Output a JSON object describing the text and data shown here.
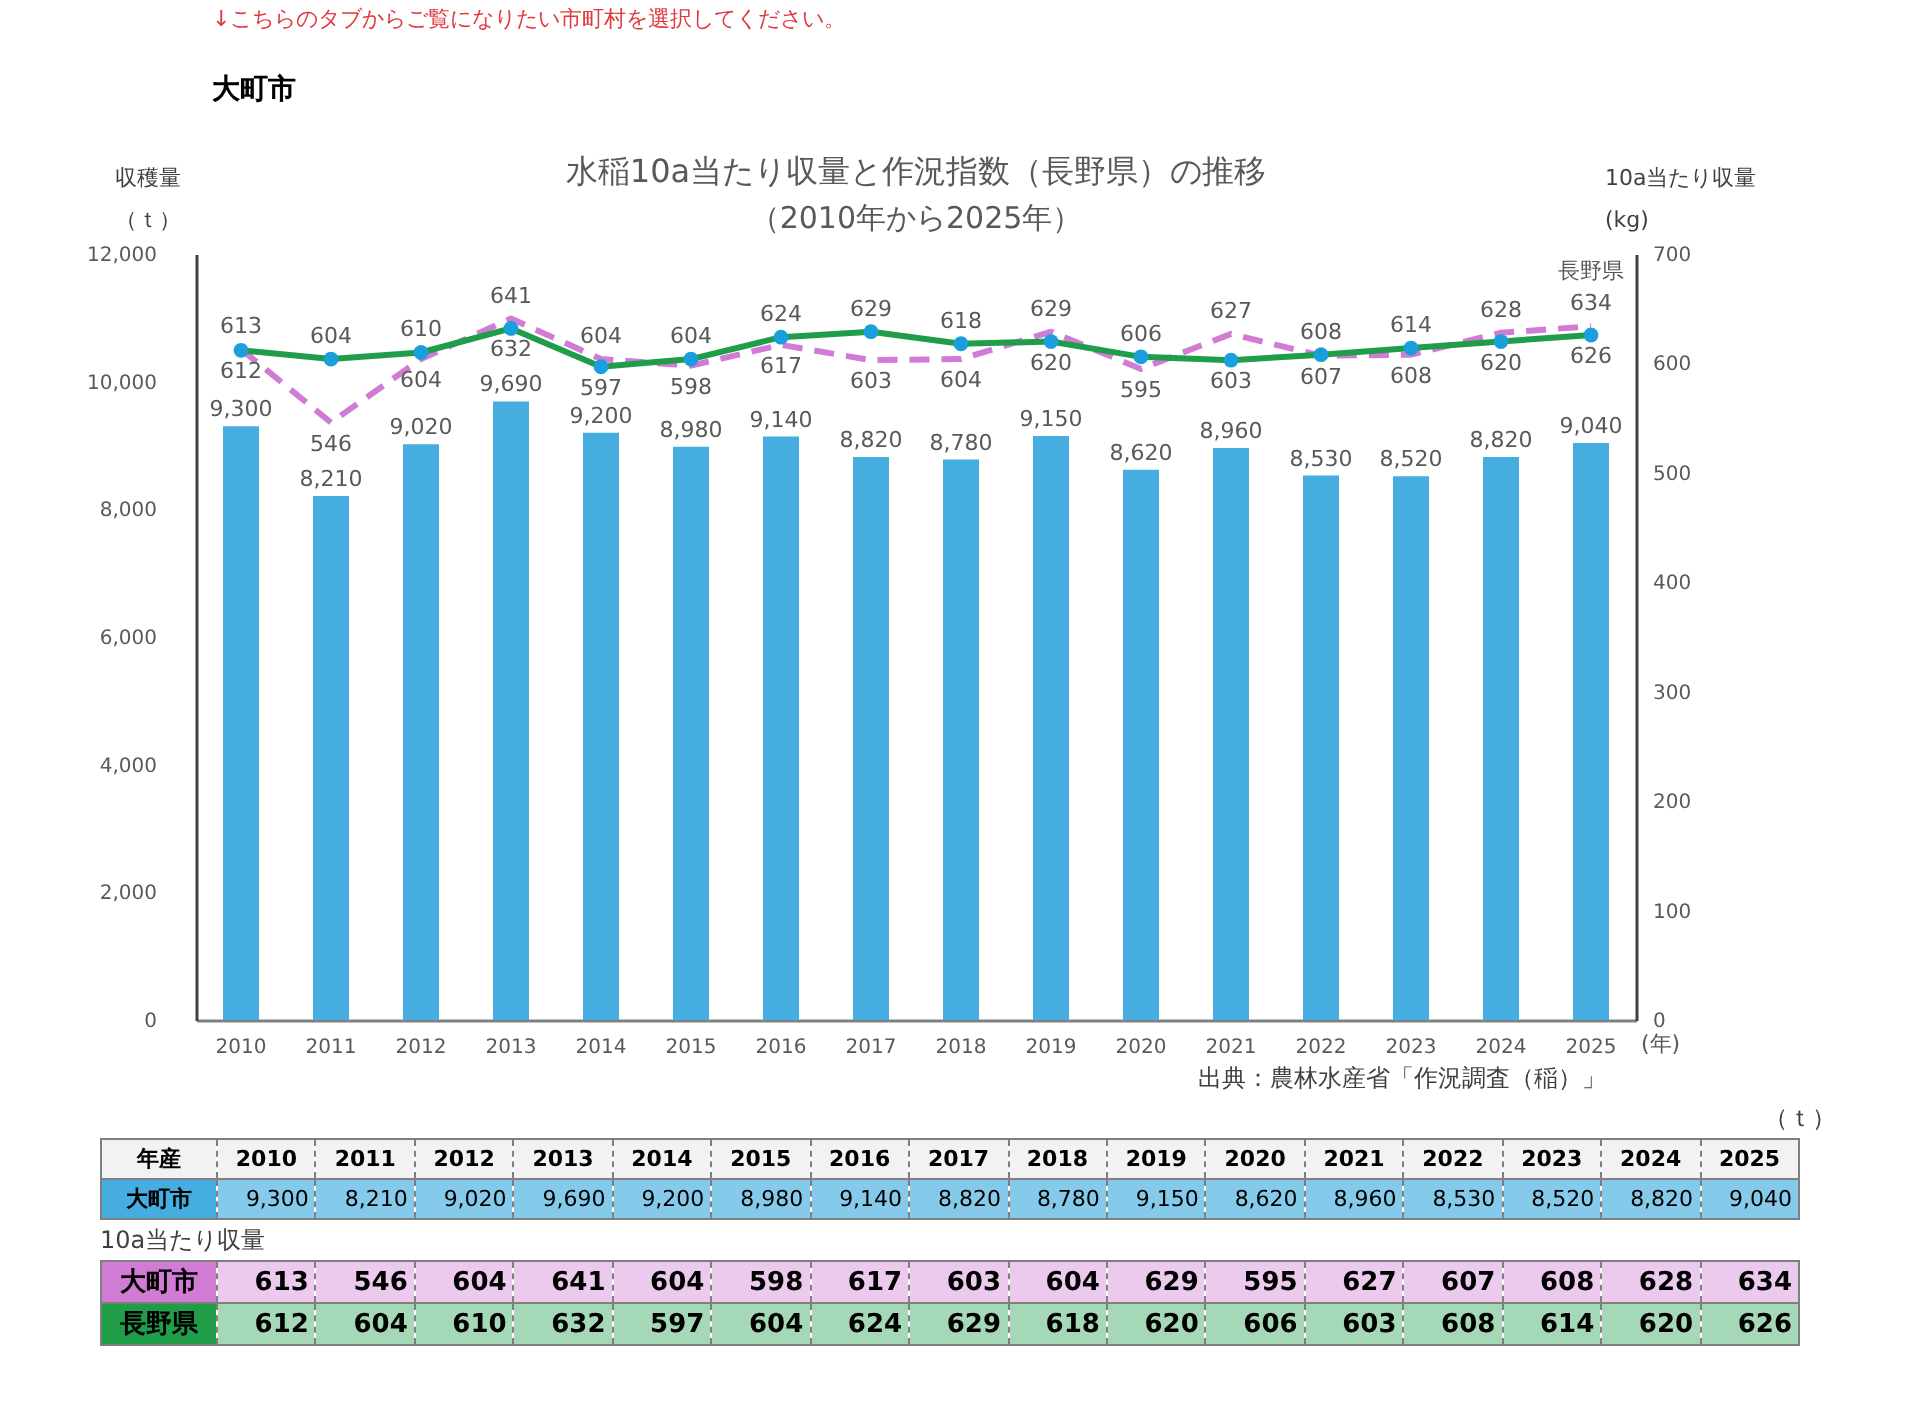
{
  "chart_data": {
    "type": "bar",
    "title": "水稲10a当たり収量と作況指数（長野県）の推移",
    "subtitle": "（2010年から2025年）",
    "xlabel": "(年)",
    "ylabel": "収穫量（ｔ）",
    "y2label": "10a当たり収量(kg)",
    "categories": [
      "2010",
      "2011",
      "2012",
      "2013",
      "2014",
      "2015",
      "2016",
      "2017",
      "2018",
      "2019",
      "2020",
      "2021",
      "2022",
      "2023",
      "2024",
      "2025"
    ],
    "series": [
      {
        "name": "大町市",
        "color": "#45ade0",
        "values": [
          9300,
          8210,
          9020,
          9690,
          9200,
          8980,
          9140,
          8820,
          8780,
          9150,
          8620,
          8960,
          8530,
          8520,
          8820,
          9040
        ],
        "value_labels": [
          "9,300",
          "8,210",
          "9,020",
          "9,690",
          "9,200",
          "8,980",
          "9,140",
          "8,820",
          "8,780",
          "9,150",
          "8,620",
          "8,960",
          "8,530",
          "8,520",
          "8,820",
          "9,040"
        ]
      },
      {
        "name": "大町市",
        "type": "line",
        "axis": "y2",
        "color": "#d07bd4",
        "line_style": "dashed",
        "values": [
          613,
          546,
          604,
          641,
          604,
          598,
          617,
          603,
          604,
          629,
          595,
          627,
          607,
          608,
          628,
          634
        ],
        "value_labels": [
          "613",
          "546",
          "604",
          "641",
          "604",
          "598",
          "617",
          "603",
          "604",
          "629",
          "595",
          "627",
          "607",
          "608",
          "628",
          "634"
        ]
      },
      {
        "name": "長野県",
        "type": "line",
        "axis": "y2",
        "color": "#1f9d48",
        "marker": "circle",
        "colors": [
          "#1a9fdc",
          "#1a9fdc",
          "#1a9fdc",
          "#1a9fdc",
          "#1a9fdc",
          "#1a9fdc",
          "#1a9fdc",
          "#1a9fdc",
          "#1a9fdc",
          "#1a9fdc",
          "#1a9fdc",
          "#1a9fdc",
          "#1a9fdc",
          "#1a9fdc",
          "#1a9fdc",
          "#1a9fdc"
        ],
        "values": [
          612,
          604,
          610,
          632,
          597,
          604,
          624,
          629,
          618,
          620,
          606,
          603,
          608,
          614,
          620,
          626
        ],
        "value_labels": [
          "612",
          "604",
          "610",
          "632",
          "597",
          "604",
          "624",
          "629",
          "618",
          "620",
          "606",
          "603",
          "608",
          "614",
          "620",
          "626"
        ]
      }
    ],
    "ylim": [
      0,
      12000
    ],
    "yticks": [
      {
        "value": 0,
        "label": "0"
      },
      {
        "value": 2000,
        "label": "2,000"
      },
      {
        "value": 4000,
        "label": "4,000"
      },
      {
        "value": 6000,
        "label": "6,000"
      },
      {
        "value": 8000,
        "label": "8,000"
      },
      {
        "value": 10000,
        "label": "10,000"
      },
      {
        "value": 12000,
        "label": "12,000"
      }
    ],
    "y2lim": [
      0,
      700
    ],
    "y2ticks": [
      0,
      100,
      200,
      300,
      400,
      500,
      600,
      700
    ],
    "annotations": [
      "↓こちらのタブからご覧になりたい市町村を選択してください。",
      "大町市",
      "出典：農林水産省「作況調査（稲）」",
      "（ｔ）",
      "年産",
      "10a当たり収量",
      "長野県"
    ]
  }
}
